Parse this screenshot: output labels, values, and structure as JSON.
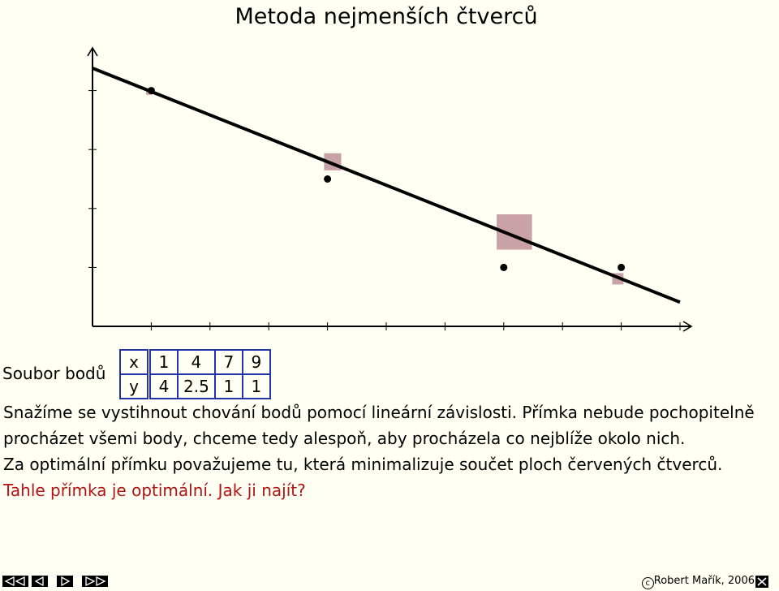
{
  "title": "Metoda nejmenších čtverců",
  "chart_data": {
    "type": "scatter",
    "x": [
      1,
      4,
      7,
      9
    ],
    "y": [
      4,
      2.5,
      1,
      1
    ],
    "xlim": [
      0,
      10
    ],
    "ylim": [
      0,
      4.45
    ],
    "fit_line": {
      "intercept": 4.38,
      "slope": -0.397
    },
    "x_ticks": [
      1,
      2,
      3,
      4,
      5,
      6,
      7,
      8,
      9,
      10
    ],
    "y_ticks": [
      1,
      2,
      3,
      4
    ],
    "grid": false,
    "square_color": "#c9a2a8"
  },
  "table": {
    "label": "Soubor bodů",
    "x_header": "x",
    "y_header": "y",
    "x_values": [
      "1",
      "4",
      "7",
      "9"
    ],
    "y_values": [
      "4",
      "2.5",
      "1",
      "1"
    ]
  },
  "text": {
    "line1": "Snažíme se vystihnout chování bodů pomocí lineární závislosti. Přímka nebude pochopitelně procházet všemi body, chceme tedy alespoň, aby procházela co nejblíže okolo nich.",
    "line2": "Za optimální přímku považujeme tu, která minimalizuje součet ploch červených čtverců.",
    "line3": "Tahle přímka je optimální. Jak ji najít?"
  },
  "footer": {
    "copyright_symbol": "c",
    "text": "Robert Mařík, 2006"
  },
  "nav_icons": [
    "first-page-icon",
    "prev-page-icon",
    "next-page-icon",
    "last-page-icon",
    "close-icon"
  ],
  "colors": {
    "background": "#fffff3",
    "accent_text": "#b01414",
    "table_border": "#2433a8"
  }
}
